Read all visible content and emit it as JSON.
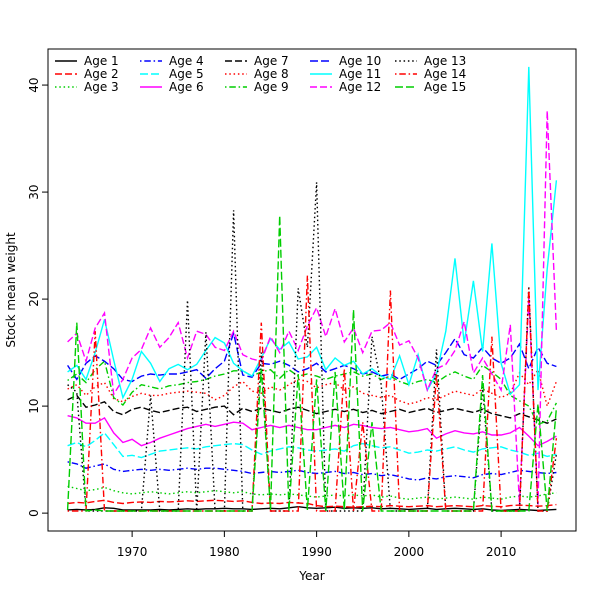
{
  "figure": {
    "background": "#ffffff",
    "border_color": "#000000"
  },
  "chart_data": {
    "type": "line",
    "title": "",
    "xlabel": "Year",
    "ylabel": "Stock mean weight",
    "grid": false,
    "legend_position": "top-left",
    "legend_columns": 5,
    "x_ticks": [
      1970,
      1980,
      1990,
      2000,
      2010
    ],
    "y_ticks": [
      0,
      10,
      20,
      30,
      40
    ],
    "xlim": [
      1960.88,
      2018.12
    ],
    "ylim": [
      -1.67,
      43.37
    ],
    "years": [
      1963,
      1964,
      1965,
      1966,
      1967,
      1968,
      1969,
      1970,
      1971,
      1972,
      1973,
      1974,
      1975,
      1976,
      1977,
      1978,
      1979,
      1980,
      1981,
      1982,
      1983,
      1984,
      1985,
      1986,
      1987,
      1988,
      1989,
      1990,
      1991,
      1992,
      1993,
      1994,
      1995,
      1996,
      1997,
      1998,
      1999,
      2000,
      2001,
      2002,
      2003,
      2004,
      2005,
      2006,
      2007,
      2008,
      2009,
      2010,
      2011,
      2012,
      2013,
      2014,
      2015,
      2016
    ],
    "series": [
      {
        "name": "Age 1",
        "color": "#000000",
        "linetype": "solid",
        "values": [
          0.3,
          0.35,
          0.3,
          0.35,
          0.5,
          0.45,
          0.3,
          0.3,
          0.3,
          0.3,
          0.35,
          0.3,
          0.35,
          0.4,
          0.35,
          0.4,
          0.4,
          0.45,
          0.4,
          0.4,
          0.35,
          0.4,
          0.45,
          0.4,
          0.5,
          0.6,
          0.5,
          0.45,
          0.5,
          0.55,
          0.45,
          0.5,
          0.45,
          0.5,
          0.4,
          0.45,
          0.4,
          0.35,
          0.4,
          0.45,
          0.35,
          0.4,
          0.45,
          0.4,
          0.35,
          0.4,
          0.3,
          0.25,
          0.3,
          0.35,
          0.3,
          0.25,
          0.3,
          0.35
        ]
      },
      {
        "name": "Age 2",
        "color": "#FF0000",
        "linetype": "dashed",
        "values": [
          0.9,
          1.0,
          0.95,
          1.1,
          1.2,
          1.0,
          0.9,
          1.0,
          1.05,
          1.0,
          1.1,
          1.05,
          1.1,
          1.15,
          1.1,
          1.15,
          1.2,
          1.15,
          1.1,
          1.15,
          1.0,
          0.9,
          0.95,
          0.9,
          1.0,
          0.95,
          0.9,
          0.7,
          0.6,
          0.65,
          0.6,
          0.55,
          0.6,
          0.65,
          0.6,
          0.7,
          0.65,
          0.6,
          0.65,
          0.7,
          0.6,
          0.65,
          0.7,
          0.65,
          0.6,
          0.7,
          0.65,
          0.6,
          0.7,
          0.75,
          0.7,
          0.65,
          0.7,
          0.8
        ]
      },
      {
        "name": "Age 3",
        "color": "#00CD00",
        "linetype": "dotted",
        "values": [
          2.5,
          2.3,
          2.1,
          2.2,
          2.4,
          2.1,
          1.9,
          1.8,
          1.9,
          2.0,
          1.9,
          1.8,
          1.9,
          2.0,
          1.9,
          2.0,
          2.1,
          2.0,
          1.9,
          2.0,
          1.8,
          1.7,
          1.8,
          1.7,
          1.8,
          1.7,
          1.6,
          1.5,
          1.6,
          1.7,
          1.6,
          1.7,
          1.6,
          1.7,
          1.5,
          1.6,
          1.4,
          1.3,
          1.4,
          1.5,
          1.3,
          1.4,
          1.5,
          1.4,
          1.3,
          1.5,
          1.4,
          1.3,
          1.5,
          1.6,
          1.5,
          1.6,
          1.8,
          1.9
        ]
      },
      {
        "name": "Age 4",
        "color": "#0000FF",
        "linetype": "dotdash",
        "values": [
          4.8,
          4.6,
          4.2,
          4.4,
          4.6,
          4.1,
          3.9,
          4.0,
          4.1,
          4.0,
          4.1,
          4.0,
          4.1,
          4.2,
          4.1,
          4.2,
          4.2,
          4.1,
          4.0,
          3.9,
          3.7,
          3.8,
          3.9,
          3.8,
          3.9,
          4.0,
          3.8,
          3.7,
          3.8,
          3.9,
          3.7,
          3.8,
          3.6,
          3.7,
          3.5,
          3.6,
          3.4,
          3.2,
          3.1,
          3.3,
          3.2,
          3.4,
          3.5,
          3.4,
          3.3,
          3.6,
          3.7,
          3.6,
          3.8,
          4.0,
          3.9,
          3.8,
          3.7,
          3.8
        ]
      },
      {
        "name": "Age 5",
        "color": "#00FFFF",
        "linetype": "longdash",
        "values": [
          6.3,
          6.6,
          6.2,
          6.8,
          7.5,
          6.4,
          5.3,
          5.4,
          5.2,
          5.5,
          5.8,
          5.9,
          6.0,
          6.1,
          6.0,
          6.2,
          6.3,
          6.4,
          6.5,
          6.4,
          5.9,
          5.5,
          5.8,
          6.0,
          6.2,
          6.1,
          5.9,
          5.8,
          5.9,
          6.0,
          5.8,
          6.3,
          6.5,
          6.3,
          6.1,
          6.2,
          5.9,
          5.6,
          5.7,
          5.9,
          5.8,
          6.0,
          6.2,
          5.9,
          5.7,
          6.0,
          6.1,
          6.2,
          5.9,
          5.7,
          5.4,
          5.6,
          5.3,
          5.5
        ]
      },
      {
        "name": "Age 6",
        "color": "#FF00FF",
        "linetype": "solid",
        "values": [
          9.1,
          8.9,
          8.4,
          8.4,
          8.9,
          7.5,
          6.6,
          6.9,
          6.3,
          6.6,
          7.0,
          7.3,
          7.6,
          7.9,
          8.1,
          8.3,
          8.1,
          8.3,
          8.5,
          8.4,
          7.8,
          8.0,
          8.2,
          8.0,
          8.2,
          8.0,
          7.8,
          7.8,
          8.0,
          8.2,
          8.0,
          8.3,
          8.2,
          8.0,
          7.9,
          8.0,
          7.8,
          7.6,
          7.7,
          7.9,
          7.0,
          7.4,
          7.7,
          7.5,
          7.4,
          7.6,
          7.3,
          7.3,
          7.5,
          8.0,
          7.2,
          6.3,
          6.7,
          7.2
        ]
      },
      {
        "name": "Age 7",
        "color": "#000000",
        "linetype": "dashed",
        "values": [
          10.6,
          11.0,
          9.9,
          10.1,
          10.4,
          9.5,
          9.2,
          9.7,
          9.9,
          9.6,
          9.4,
          9.6,
          9.8,
          9.9,
          9.5,
          9.7,
          9.9,
          10.0,
          9.2,
          9.8,
          9.5,
          9.8,
          9.6,
          9.4,
          9.7,
          9.9,
          9.6,
          9.3,
          9.5,
          9.7,
          9.5,
          9.7,
          9.4,
          9.6,
          9.3,
          9.5,
          9.7,
          9.4,
          9.6,
          9.8,
          9.4,
          9.6,
          9.8,
          9.6,
          9.4,
          9.7,
          9.3,
          9.1,
          8.9,
          9.3,
          9.0,
          8.7,
          8.4,
          8.8
        ]
      },
      {
        "name": "Age 8",
        "color": "#FF0000",
        "linetype": "dotted",
        "values": [
          11.6,
          12.0,
          11.0,
          11.8,
          12.2,
          10.7,
          10.4,
          10.9,
          11.2,
          11.0,
          11.0,
          11.2,
          11.3,
          11.4,
          11.3,
          11.2,
          10.6,
          11.0,
          11.8,
          12.3,
          11.4,
          11.2,
          11.8,
          11.5,
          12.0,
          12.5,
          12.3,
          11.7,
          12.0,
          12.2,
          11.5,
          11.8,
          11.2,
          11.0,
          10.8,
          11.0,
          10.5,
          10.2,
          10.4,
          10.8,
          10.6,
          11.0,
          11.4,
          11.2,
          11.0,
          11.6,
          11.2,
          10.8,
          11.2,
          13.1,
          12.0,
          13.4,
          10.0,
          12.3
        ]
      },
      {
        "name": "Age 9",
        "color": "#00CD00",
        "linetype": "dotdash",
        "values": [
          12.4,
          13.0,
          12.2,
          13.4,
          14.2,
          10.8,
          10.1,
          11.3,
          12.0,
          11.8,
          11.6,
          11.9,
          12.0,
          12.2,
          12.3,
          12.5,
          12.8,
          13.0,
          13.3,
          13.3,
          12.8,
          13.2,
          13.4,
          12.6,
          13.4,
          12.8,
          13.0,
          12.8,
          12.5,
          12.8,
          13.0,
          13.2,
          12.8,
          13.0,
          12.5,
          12.8,
          12.3,
          12.0,
          12.3,
          12.5,
          12.2,
          12.8,
          13.2,
          12.8,
          12.5,
          13.8,
          13.2,
          12.5,
          11.0,
          10.5,
          10.0,
          8.3,
          8.6,
          10.3
        ]
      },
      {
        "name": "Age 10",
        "color": "#0000FF",
        "linetype": "longdash",
        "values": [
          13.8,
          12.5,
          14.0,
          14.7,
          14.2,
          13.5,
          12.5,
          12.3,
          12.8,
          13.0,
          12.9,
          13.0,
          13.0,
          13.2,
          13.4,
          12.6,
          13.5,
          14.2,
          16.8,
          12.9,
          12.7,
          14.0,
          13.9,
          14.2,
          13.8,
          13.2,
          13.5,
          14.0,
          13.2,
          13.5,
          13.8,
          13.5,
          13.0,
          13.2,
          12.8,
          13.0,
          12.5,
          13.0,
          13.5,
          14.2,
          13.8,
          15.0,
          16.3,
          14.8,
          14.5,
          15.5,
          14.5,
          14.0,
          14.5,
          15.8,
          13.5,
          15.5,
          14.0,
          13.7
        ]
      },
      {
        "name": "Age 11",
        "color": "#00FFFF",
        "linetype": "solid",
        "values": [
          13.2,
          13.8,
          12.5,
          15.0,
          18.1,
          14.3,
          10.8,
          12.5,
          15.1,
          14.0,
          12.3,
          13.5,
          13.9,
          13.4,
          13.9,
          15.2,
          16.4,
          15.9,
          14.0,
          13.3,
          12.8,
          14.5,
          16.3,
          15.3,
          16.0,
          14.4,
          14.6,
          15.5,
          13.4,
          14.5,
          13.8,
          14.2,
          13.0,
          13.5,
          12.8,
          12.5,
          14.7,
          12.0,
          14.8,
          11.5,
          13.0,
          17.0,
          23.8,
          15.9,
          21.7,
          15.1,
          25.2,
          14.0,
          11.1,
          12.0,
          41.7,
          11.5,
          22.8,
          31.1
        ]
      },
      {
        "name": "Age 12",
        "color": "#FF00FF",
        "linetype": "dashed",
        "values": [
          16.0,
          16.8,
          14.2,
          17.3,
          18.7,
          11.1,
          12.5,
          14.5,
          15.3,
          17.3,
          15.5,
          16.4,
          17.8,
          14.5,
          17.0,
          16.7,
          15.5,
          15.2,
          17.0,
          14.8,
          14.4,
          14.2,
          16.5,
          15.0,
          17.0,
          15.2,
          17.5,
          19.2,
          16.5,
          19.1,
          16.0,
          17.3,
          15.0,
          17.0,
          17.1,
          17.8,
          15.7,
          16.1,
          14.5,
          11.5,
          13.5,
          13.9,
          15.2,
          17.9,
          13.1,
          14.5,
          13.0,
          11.5,
          17.6,
          0.8,
          20.1,
          0.8,
          37.6,
          17.0
        ]
      },
      {
        "name": "Age 13",
        "color": "#000000",
        "linetype": "dotted",
        "values": [
          12.0,
          11.3,
          0.2,
          0.2,
          0.2,
          0.2,
          0.2,
          0.2,
          0.2,
          11.0,
          0.2,
          0.2,
          0.2,
          19.9,
          0.2,
          16.9,
          0.2,
          0.2,
          28.3,
          0.2,
          0.2,
          15.0,
          0.2,
          0.2,
          0.2,
          21.0,
          15.5,
          30.9,
          0.2,
          0.2,
          0.2,
          0.2,
          0.2,
          16.5,
          12.0,
          0.2,
          0.2,
          0.2,
          0.2,
          0.2,
          15.3,
          0.2,
          0.2,
          0.2,
          0.2,
          11.8,
          0.2,
          0.2,
          0.2,
          0.2,
          21.2,
          0.2,
          0.2,
          5.5
        ]
      },
      {
        "name": "Age 14",
        "color": "#FF0000",
        "linetype": "dotdash",
        "values": [
          0.2,
          0.2,
          0.2,
          17.0,
          0.2,
          0.2,
          0.2,
          0.2,
          0.2,
          0.2,
          0.2,
          0.2,
          0.2,
          0.2,
          0.2,
          0.2,
          0.2,
          0.2,
          0.2,
          0.2,
          0.2,
          17.8,
          0.2,
          0.2,
          0.2,
          0.2,
          22.2,
          0.2,
          0.2,
          0.2,
          13.5,
          0.2,
          8.5,
          0.2,
          0.2,
          20.8,
          0.2,
          0.2,
          0.2,
          0.2,
          13.0,
          0.2,
          0.2,
          0.2,
          0.2,
          0.2,
          16.5,
          0.2,
          0.2,
          0.2,
          21.0,
          0.2,
          0.2,
          7.0
        ]
      },
      {
        "name": "Age 15",
        "color": "#00CD00",
        "linetype": "longdash",
        "values": [
          0.3,
          17.8,
          0.2,
          0.3,
          0.2,
          0.2,
          0.2,
          0.2,
          0.2,
          0.2,
          0.2,
          0.2,
          0.2,
          0.2,
          0.2,
          0.2,
          0.2,
          0.2,
          0.2,
          0.2,
          0.2,
          13.5,
          0.3,
          27.8,
          0.2,
          13.0,
          0.3,
          12.5,
          0.2,
          13.2,
          0.3,
          19.0,
          0.2,
          8.5,
          0.2,
          0.2,
          0.2,
          0.2,
          0.2,
          0.2,
          0.2,
          0.2,
          0.2,
          0.2,
          0.2,
          12.9,
          0.2,
          0.2,
          0.2,
          0.2,
          0.2,
          10.2,
          0.2,
          9.8
        ]
      }
    ]
  }
}
